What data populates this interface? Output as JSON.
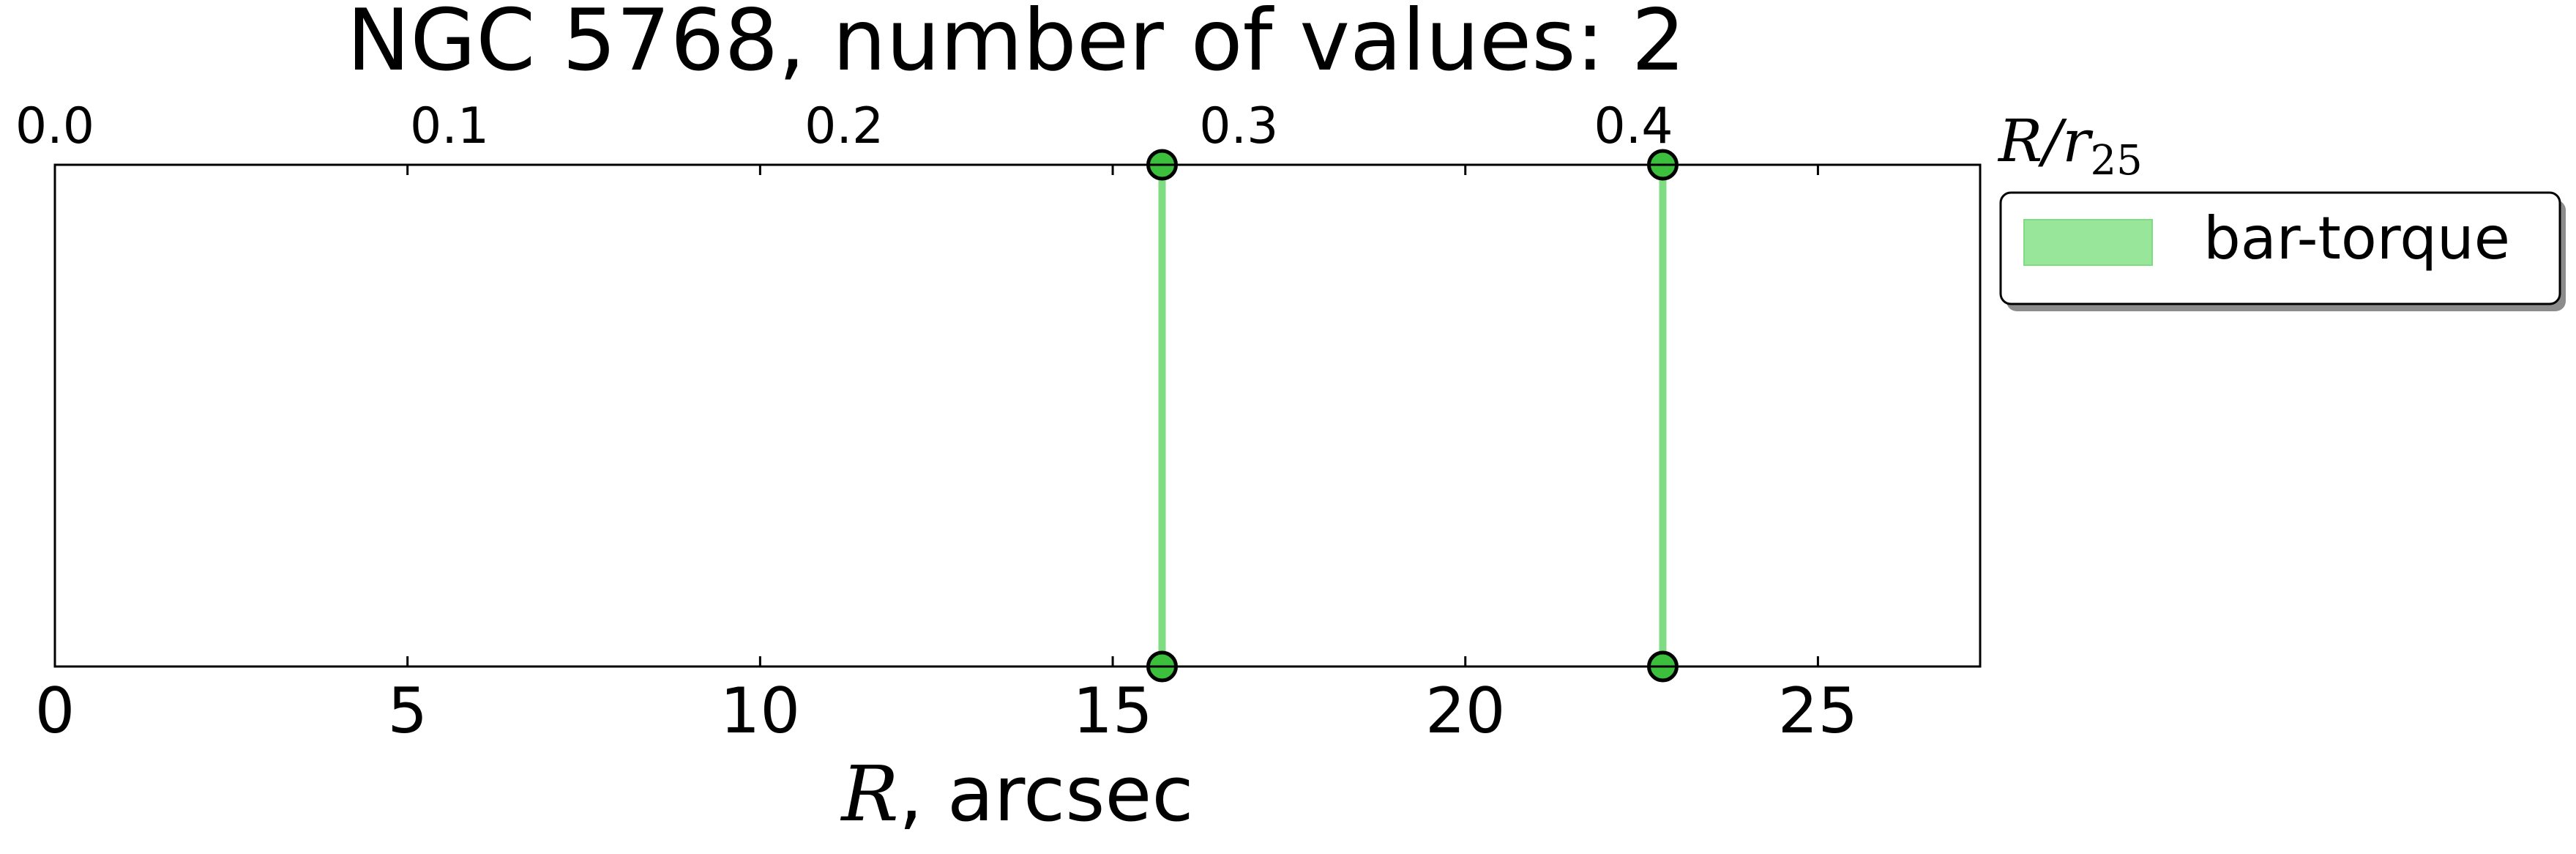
{
  "chart_data": {
    "type": "scatter",
    "title": "NGC 5768, number of values: 2",
    "xlabel": {
      "symbol": "R",
      "text": ", arcsec"
    },
    "x2label": {
      "main": "R/r",
      "sub": "25"
    },
    "xlim": [
      0,
      27.3
    ],
    "x_ticks": [
      0,
      5,
      10,
      15,
      20,
      25
    ],
    "x_tick_labels": [
      "0",
      "5",
      "10",
      "15",
      "20",
      "25"
    ],
    "x2_ticks": [
      0.0,
      0.1,
      0.2,
      0.3,
      0.4
    ],
    "x2_tick_labels": [
      "0.0",
      "0.1",
      "0.2",
      "0.3",
      "0.4"
    ],
    "x2_per_x": 0.01787,
    "grid": false,
    "legend_position": "outside-top-right",
    "series": [
      {
        "name": "bar-torque",
        "color": "#7fdc82",
        "marker_color": "#3cbf3c",
        "x": [
          15.7,
          22.8
        ]
      }
    ]
  }
}
